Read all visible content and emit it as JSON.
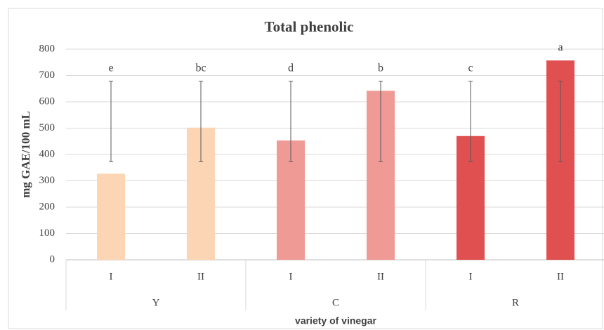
{
  "chart_data": {
    "type": "bar",
    "title": "Total phenolic",
    "y_label": "mg GAE/100 mL",
    "x_label": "variety of vinegar",
    "categories": [
      "I",
      "II",
      "I",
      "II",
      "I",
      "II"
    ],
    "groups": [
      "Y",
      "C",
      "R"
    ],
    "values": [
      327,
      502,
      453,
      642,
      470,
      757
    ],
    "colors": [
      "#fcd5b4",
      "#fcd5b4",
      "#f09a96",
      "#f09a96",
      "#e05050",
      "#e05050"
    ],
    "error_low": [
      373,
      373,
      373,
      373,
      373,
      373
    ],
    "error_high": [
      678,
      678,
      678,
      678,
      678,
      678
    ],
    "annotations": [
      "e",
      "bc",
      "d",
      "b",
      "c",
      "a"
    ],
    "ylim": [
      0,
      800
    ],
    "yticks": [
      0,
      100,
      200,
      300,
      400,
      500,
      600,
      700,
      800
    ],
    "grid": true
  }
}
